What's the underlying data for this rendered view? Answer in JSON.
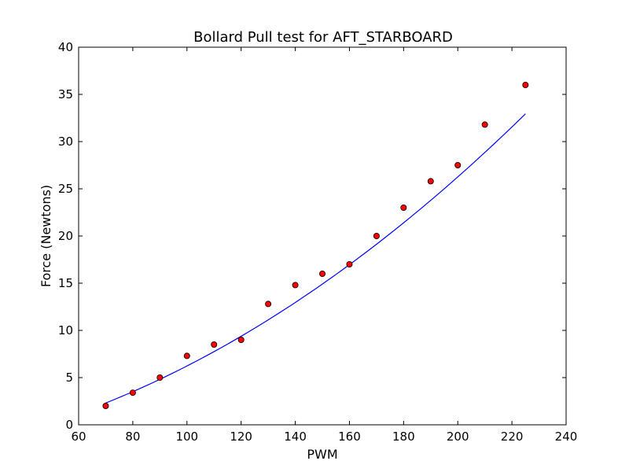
{
  "chart_data": {
    "type": "scatter",
    "title": "Bollard Pull test for AFT_STARBOARD",
    "xlabel": "PWM",
    "ylabel": "Force (Newtons)",
    "xlim": [
      60,
      240
    ],
    "ylim": [
      0,
      40
    ],
    "xticks": [
      60,
      80,
      100,
      120,
      140,
      160,
      180,
      200,
      220,
      240
    ],
    "yticks": [
      0,
      5,
      10,
      15,
      20,
      25,
      30,
      35,
      40
    ],
    "grid": false,
    "legend": "none",
    "series": [
      {
        "kind": "scatter",
        "marker_color": "#ff0000",
        "edge_color": "#000000",
        "points": [
          [
            70,
            2.0
          ],
          [
            80,
            3.4
          ],
          [
            90,
            5.0
          ],
          [
            100,
            7.3
          ],
          [
            110,
            8.5
          ],
          [
            120,
            9.0
          ],
          [
            130,
            12.8
          ],
          [
            140,
            14.8
          ],
          [
            150,
            16.0
          ],
          [
            160,
            17.0
          ],
          [
            170,
            20.0
          ],
          [
            180,
            23.0
          ],
          [
            190,
            25.8
          ],
          [
            200,
            27.5
          ],
          [
            210,
            31.8
          ],
          [
            225,
            36.0
          ]
        ]
      },
      {
        "kind": "line",
        "color": "#0000ff",
        "fit": {
          "type": "quadratic",
          "coeffs": [
            0.000535,
            0.0398,
            -3.1
          ],
          "x_range": [
            70,
            225
          ]
        }
      }
    ]
  }
}
